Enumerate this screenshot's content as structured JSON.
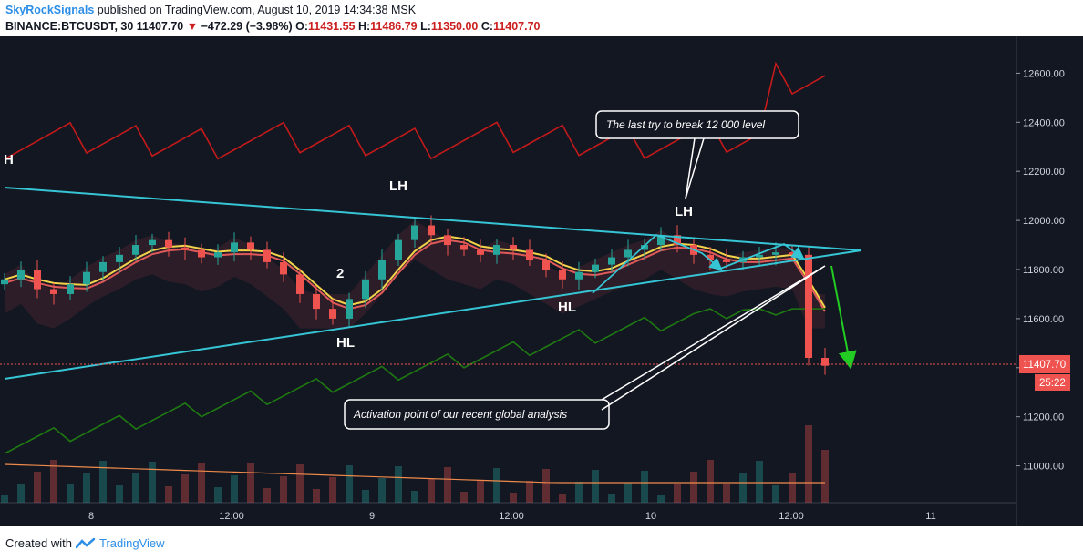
{
  "header": {
    "author": "SkyRockSignals",
    "published": "published on TradingView.com, August 10, 2019 14:34:38 MSK",
    "symbol": "BINANCE:BTCUSDT, 30",
    "last": "11407.70",
    "change": "−472.29 (−3.98%)",
    "o_label": "O:",
    "o": "11431.55",
    "h_label": "H:",
    "h": "11486.79",
    "l_label": "L:",
    "l": "11350.00",
    "c_label": "C:",
    "c": "11407.70"
  },
  "price_badge": {
    "price": "11407.70",
    "countdown": "25:22"
  },
  "annotations": {
    "callout_top": "The last try to break 12 000 level",
    "callout_bottom": "Activation point of our recent global analysis",
    "labels": [
      "H",
      "LH",
      "LH",
      "HL",
      "HL",
      "2"
    ]
  },
  "footer": {
    "created_with": "Created with",
    "brand": "TradingView"
  },
  "colors": {
    "background": "#131722",
    "bull": "#26a69a",
    "bear": "#ef5350",
    "triangle": "#36c5d4",
    "upper_band": "#c41a1a",
    "lower_band": "#1f7a12",
    "ma_yellow": "#f3d34a",
    "ma_red": "#e05a5a",
    "volume_line": "#f08a4b",
    "arrow_green": "#22cc22",
    "price_line": "#ef5350"
  },
  "chart_data": {
    "type": "candlestick",
    "symbol": "BINANCE:BTCUSDT",
    "interval": "30",
    "x_tick_labels": [
      "8",
      "12:00",
      "9",
      "12:00",
      "10",
      "12:00",
      "11"
    ],
    "y_tick_labels": [
      "12600.00",
      "12400.00",
      "12200.00",
      "12000.00",
      "11800.00",
      "11600.00",
      "11400.00",
      "11200.00",
      "11000.00"
    ],
    "ylim": [
      10850,
      12750
    ],
    "grid": false,
    "last_price": 11407.7,
    "ohlc_last": {
      "open": 11431.55,
      "high": 11486.79,
      "low": 11350.0,
      "close": 11407.7
    },
    "trendlines": [
      {
        "name": "triangle-upper",
        "from": [
          "Aug 7 22:00",
          12150
        ],
        "to": [
          "Aug 10 21:00",
          11880
        ]
      },
      {
        "name": "triangle-lower",
        "from": [
          "Aug 7 22:00",
          11340
        ],
        "to": [
          "Aug 10 21:00",
          11880
        ]
      }
    ],
    "close_series": [
      11760,
      11800,
      11720,
      11700,
      11740,
      11790,
      11830,
      11860,
      11900,
      11920,
      11890,
      11880,
      11850,
      11870,
      11910,
      11880,
      11830,
      11780,
      11700,
      11640,
      11600,
      11680,
      11760,
      11840,
      11920,
      11980,
      11940,
      11900,
      11880,
      11860,
      11900,
      11880,
      11840,
      11800,
      11760,
      11790,
      11820,
      11850,
      11880,
      11900,
      11940,
      11900,
      11860,
      11840,
      11830,
      11850,
      11860,
      11870,
      11860,
      11440,
      11407.7
    ]
  }
}
